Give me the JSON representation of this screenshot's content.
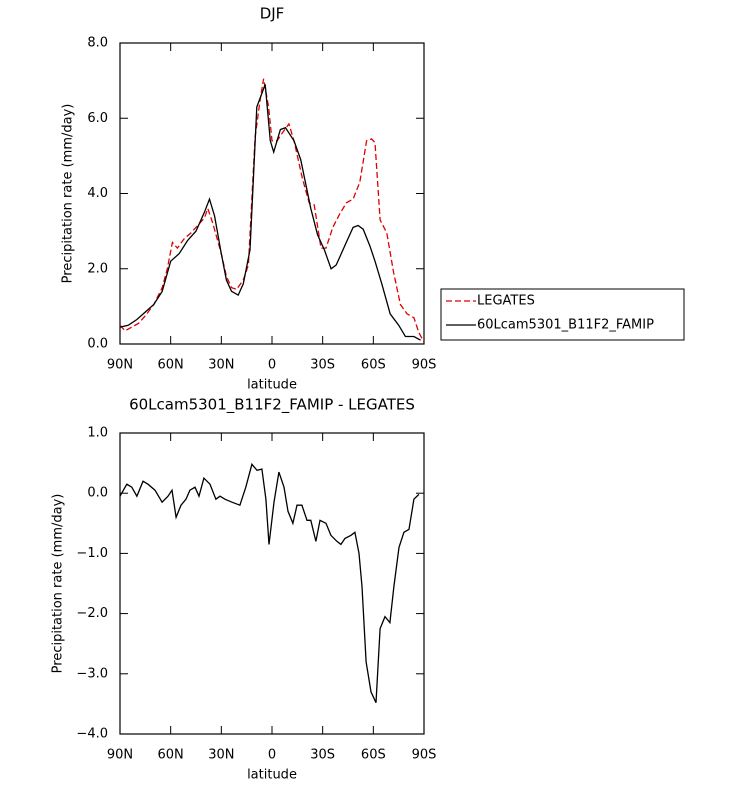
{
  "chart_data": [
    {
      "type": "line",
      "title": "DJF",
      "xlabel": "latitude",
      "ylabel": "Precipitation rate (mm/day)",
      "xlim": [
        90,
        -90
      ],
      "xticks": [
        {
          "value": 90,
          "label": "90N"
        },
        {
          "value": 60,
          "label": "60N"
        },
        {
          "value": 30,
          "label": "30N"
        },
        0,
        {
          "value": -30,
          "label": "30S"
        },
        {
          "value": -60,
          "label": "60S"
        },
        {
          "value": -90,
          "label": "90S"
        }
      ],
      "ylim": [
        0,
        8
      ],
      "yticks": [
        {
          "value": 0,
          "label": "0.0"
        },
        {
          "value": 2,
          "label": "2.0"
        },
        {
          "value": 4,
          "label": "4.0"
        },
        {
          "value": 6,
          "label": "6.0"
        },
        {
          "value": 8,
          "label": "8.0"
        }
      ],
      "grid": false,
      "legend": "right",
      "series": [
        {
          "name": "LEGATES",
          "color": "#e00000",
          "linestyle": "dashed",
          "x": [
            90,
            87,
            83,
            79,
            75,
            70,
            65,
            62,
            59,
            56,
            52,
            48,
            44,
            40,
            38,
            35,
            30,
            27,
            24,
            21,
            17,
            14,
            10,
            7,
            5,
            2,
            0,
            -3,
            -6,
            -10,
            -13,
            -18,
            -22,
            -25,
            -29,
            -32,
            -36,
            -40,
            -44,
            -48,
            -52,
            -56,
            -59,
            -61,
            -64,
            -68,
            -72,
            -76,
            -80,
            -84,
            -87,
            -90
          ],
          "values": [
            0.5,
            0.35,
            0.45,
            0.55,
            0.75,
            1.05,
            1.5,
            2.0,
            2.7,
            2.55,
            2.8,
            2.95,
            3.15,
            3.35,
            3.6,
            3.2,
            2.4,
            1.8,
            1.5,
            1.45,
            1.7,
            2.1,
            5.5,
            6.5,
            7.05,
            6.3,
            5.4,
            5.4,
            5.6,
            5.85,
            5.4,
            4.4,
            3.75,
            3.7,
            2.55,
            2.55,
            3.1,
            3.45,
            3.75,
            3.85,
            4.3,
            5.4,
            5.45,
            5.35,
            3.3,
            2.95,
            1.9,
            1.05,
            0.8,
            0.7,
            0.3,
            0.05
          ]
        },
        {
          "name": "60Lcam5301_B11F2_FAMIP",
          "color": "#000000",
          "linestyle": "solid",
          "x": [
            90,
            85,
            80,
            75,
            70,
            65,
            60,
            55,
            50,
            45,
            40,
            37,
            34,
            30,
            27,
            24,
            20,
            17,
            13,
            9,
            4,
            1,
            -1,
            -5,
            -8,
            -13,
            -17,
            -23,
            -27,
            -31,
            -35,
            -38,
            -44,
            -48,
            -51,
            -54,
            -58,
            -61,
            -65,
            -70,
            -75,
            -79,
            -84,
            -88
          ],
          "values": [
            0.45,
            0.5,
            0.65,
            0.85,
            1.05,
            1.4,
            2.2,
            2.4,
            2.75,
            3.0,
            3.5,
            3.85,
            3.4,
            2.4,
            1.7,
            1.4,
            1.3,
            1.6,
            2.5,
            6.3,
            6.9,
            5.4,
            5.1,
            5.7,
            5.75,
            5.4,
            4.9,
            3.6,
            2.9,
            2.5,
            2.0,
            2.1,
            2.7,
            3.1,
            3.15,
            3.05,
            2.6,
            2.2,
            1.6,
            0.8,
            0.5,
            0.2,
            0.2,
            0.1
          ]
        }
      ]
    },
    {
      "type": "line",
      "title": "60Lcam5301_B11F2_FAMIP - LEGATES",
      "xlabel": "latitude",
      "ylabel": "Precipitation rate (mm/day)",
      "xlim": [
        90,
        -90
      ],
      "xticks": [
        {
          "value": 90,
          "label": "90N"
        },
        {
          "value": 60,
          "label": "60N"
        },
        {
          "value": 30,
          "label": "30N"
        },
        0,
        {
          "value": -30,
          "label": "30S"
        },
        {
          "value": -60,
          "label": "60S"
        },
        {
          "value": -90,
          "label": "90S"
        }
      ],
      "ylim": [
        -4,
        1
      ],
      "yticks": [
        {
          "value": -4,
          "label": "−4.0"
        },
        {
          "value": -3,
          "label": "−3.0"
        },
        {
          "value": -2,
          "label": "−2.0"
        },
        {
          "value": -1,
          "label": "−1.0"
        },
        {
          "value": 0,
          "label": "0.0"
        },
        {
          "value": 1,
          "label": "1.0"
        }
      ],
      "grid": false,
      "color": "#000000",
      "x": [
        90,
        86,
        83,
        80,
        76.4,
        73.4,
        69.3,
        65.1,
        61.6,
        59.2,
        56.8,
        53.9,
        50.9,
        48.6,
        45.6,
        43.2,
        40.3,
        36.7,
        33.2,
        30.8,
        27.9,
        23.7,
        19,
        15.5,
        11.9,
        8.9,
        6,
        3.6,
        1.8,
        -1.2,
        -4.1,
        -7.1,
        -9.5,
        -12.4,
        -14.8,
        -17.7,
        -20.7,
        -23,
        -26,
        -28.4,
        -32,
        -34.9,
        -38.5,
        -40.8,
        -43.2,
        -46.8,
        -49.1,
        -51.5,
        -53.3,
        -55.7,
        -58.6,
        -61.6,
        -64,
        -66.9,
        -69.8,
        -72.2,
        -75.2,
        -78.1,
        -81.1,
        -84,
        -87
      ],
      "values": [
        -0.05,
        0.15,
        0.1,
        -0.05,
        0.2,
        0.15,
        0.05,
        -0.15,
        -0.05,
        0.05,
        -0.4,
        -0.2,
        -0.1,
        0.05,
        0.1,
        -0.05,
        0.25,
        0.15,
        -0.1,
        -0.05,
        -0.1,
        -0.15,
        -0.2,
        0.1,
        0.48,
        0.38,
        0.4,
        -0.1,
        -0.85,
        -0.15,
        0.35,
        0.1,
        -0.3,
        -0.5,
        -0.2,
        -0.2,
        -0.45,
        -0.45,
        -0.8,
        -0.45,
        -0.5,
        -0.7,
        -0.8,
        -0.85,
        -0.75,
        -0.7,
        -0.65,
        -1.0,
        -1.55,
        -2.8,
        -3.3,
        -3.48,
        -2.25,
        -2.05,
        -2.15,
        -1.55,
        -0.9,
        -0.65,
        -0.6,
        -0.1,
        -0.02
      ]
    }
  ]
}
